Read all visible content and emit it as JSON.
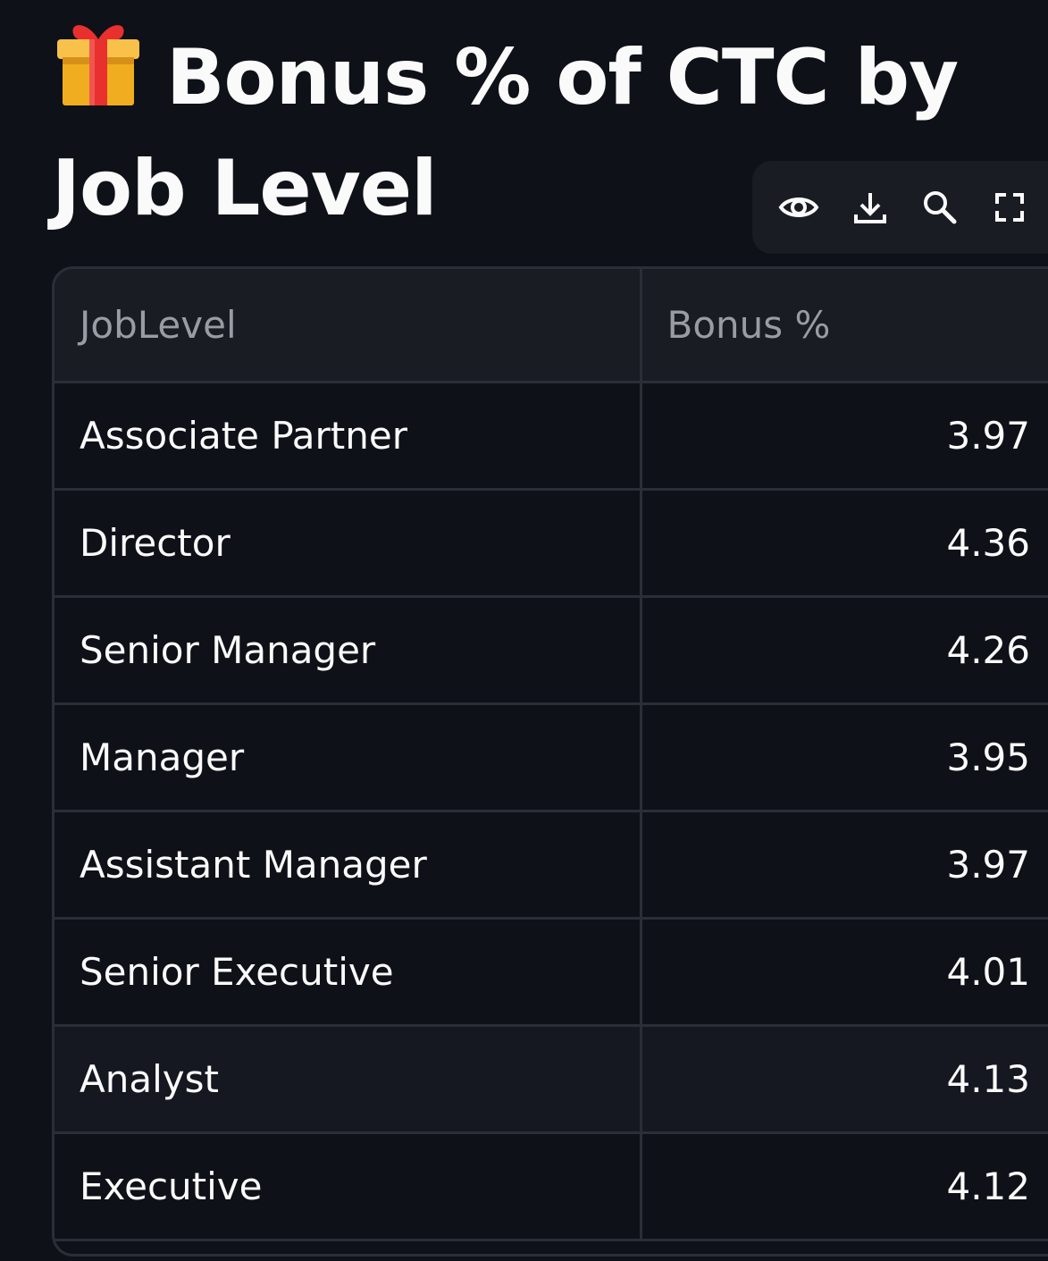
{
  "header": {
    "title": "Bonus % of CTC by Job Level",
    "title_icon": "gift-emoji"
  },
  "toolbar": {
    "icons": [
      "eye-icon",
      "download-icon",
      "search-icon",
      "fullscreen-icon"
    ]
  },
  "table": {
    "columns": [
      "JobLevel",
      "Bonus %"
    ],
    "rows": [
      {
        "job_level": "Associate Partner",
        "bonus": "3.97"
      },
      {
        "job_level": "Director",
        "bonus": "4.36"
      },
      {
        "job_level": "Senior Manager",
        "bonus": "4.26"
      },
      {
        "job_level": "Manager",
        "bonus": "3.95"
      },
      {
        "job_level": "Assistant Manager",
        "bonus": "3.97"
      },
      {
        "job_level": "Senior Executive",
        "bonus": "4.01"
      },
      {
        "job_level": "Analyst",
        "bonus": "4.13"
      },
      {
        "job_level": "Executive",
        "bonus": "4.12"
      }
    ]
  },
  "colors": {
    "background": "#0e1117",
    "header_bg": "#1a1c24",
    "border": "#2b2e37",
    "text": "#fafafa",
    "header_text": "#9a9ca3",
    "gift_box": "#f5b731",
    "gift_ribbon": "#e8302f"
  }
}
